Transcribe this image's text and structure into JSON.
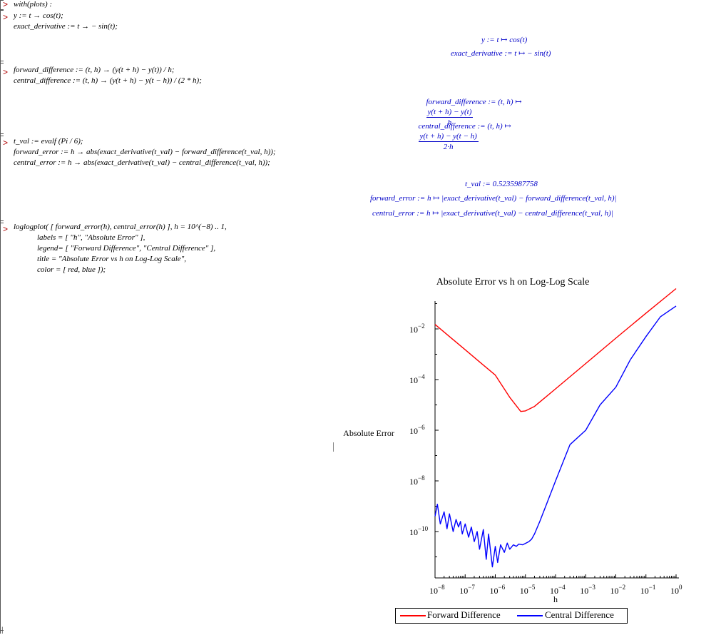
{
  "worksheet": {
    "inputs": [
      {
        "id": "in1",
        "lines": [
          "with(plots) :"
        ]
      },
      {
        "id": "in2",
        "lines": [
          "y := t → cos(t);",
          "exact_derivative := t → − sin(t);"
        ]
      },
      {
        "id": "in3",
        "lines": [
          "forward_difference := (t, h) → (y(t + h) − y(t)) / h;",
          "central_difference := (t, h) → (y(t + h) − y(t − h)) / (2 * h);"
        ]
      },
      {
        "id": "in4",
        "lines": [
          "t_val := evalf (Pi / 6);",
          "forward_error := h → abs(exact_derivative(t_val) − forward_difference(t_val, h));",
          "central_error := h → abs(exact_derivative(t_val) − central_difference(t_val, h));"
        ]
      },
      {
        "id": "in5",
        "lines": [
          "loglogplot( [ forward_error(h), central_error(h) ], h = 10^(−8) .. 1,",
          "labels = [ \"h\", \"Absolute Error\" ],",
          "legend= [ \"Forward Difference\", \"Central Difference\" ],",
          "title = \"Absolute Error vs h on Log-Log Scale\",",
          "color = [ red, blue ]);"
        ]
      }
    ],
    "outputs": {
      "y_def": "y := t ↦ cos(t)",
      "exact_def": "exact_derivative := t ↦ − sin(t)",
      "fwd_lhs": "forward_difference := (t, h) ↦",
      "fwd_num": "y(t + h) − y(t)",
      "fwd_den": "h",
      "cen_lhs": "central_difference := (t, h) ↦",
      "cen_num": "y(t + h) − y(t − h)",
      "cen_den": "2·h",
      "t_val": "t_val := 0.5235987758",
      "fwd_err": "forward_error := h ↦ |exact_derivative(t_val) − forward_difference(t_val, h)|",
      "cen_err": "central_error := h ↦ |exact_derivative(t_val) − central_difference(t_val, h)|"
    }
  },
  "chart_data": {
    "type": "line",
    "title": "Absolute Error vs h on Log-Log Scale",
    "xlabel": "h",
    "ylabel": "Absolute Error",
    "x_scale": "log",
    "y_scale": "log",
    "xlim": [
      1e-08,
      1
    ],
    "ylim": [
      1e-12,
      1
    ],
    "x_ticks": [
      "-8",
      "-7",
      "-6",
      "-5",
      "-4",
      "-3",
      "-2",
      "-1",
      "0"
    ],
    "y_ticks": [
      "-2",
      "-4",
      "-6",
      "-8",
      "-10"
    ],
    "legend_position": "bottom",
    "series": [
      {
        "name": "Forward Difference",
        "color": "#ff0000",
        "x": [
          1e-08,
          3e-08,
          1e-07,
          3e-07,
          1e-06,
          3e-06,
          7e-06,
          1e-05,
          2e-05,
          0.0001,
          0.001,
          0.01,
          0.1,
          1
        ],
        "y": [
          0.015,
          0.005,
          0.0015,
          0.0005,
          0.00015,
          2e-05,
          5.5e-06,
          5.8e-06,
          8.7e-06,
          4.3e-05,
          0.00043,
          0.0043,
          0.042,
          0.39
        ]
      },
      {
        "name": "Central Difference",
        "color": "#0000ff",
        "x": [
          1e-08,
          1.2e-08,
          1.5e-08,
          2e-08,
          2.5e-08,
          3e-08,
          4e-08,
          5e-08,
          6e-08,
          7e-08,
          8e-08,
          1e-07,
          1.3e-07,
          1.6e-07,
          2e-07,
          2.5e-07,
          3e-07,
          4e-07,
          5e-07,
          6e-07,
          8e-07,
          1e-06,
          1.2e-06,
          1.5e-06,
          2e-06,
          2.5e-06,
          3e-06,
          4e-06,
          5e-06,
          6e-06,
          8e-06,
          1e-05,
          1.3e-05,
          1.6e-05,
          2e-05,
          3e-05,
          5e-05,
          0.0001,
          0.0003,
          0.001,
          0.003,
          0.01,
          0.03,
          0.1,
          0.3,
          1
        ],
        "y": [
          4e-10,
          1.2e-09,
          2e-10,
          6e-10,
          1.3e-10,
          5e-10,
          1e-10,
          3e-10,
          1.5e-10,
          2.5e-10,
          8e-11,
          2e-10,
          6e-11,
          1.5e-10,
          4e-11,
          1e-10,
          2e-11,
          1.2e-10,
          8e-12,
          8e-11,
          4e-12,
          2.6e-11,
          6e-12,
          3e-11,
          1.5e-11,
          3.5e-11,
          2e-11,
          3e-11,
          2.6e-11,
          3.2e-11,
          3e-11,
          3.4e-11,
          4e-11,
          5e-11,
          8e-11,
          2.5e-10,
          1.2e-09,
          1e-08,
          2.7e-07,
          1e-06,
          1e-05,
          5e-05,
          0.0006,
          0.005,
          0.03,
          0.08
        ]
      }
    ]
  }
}
